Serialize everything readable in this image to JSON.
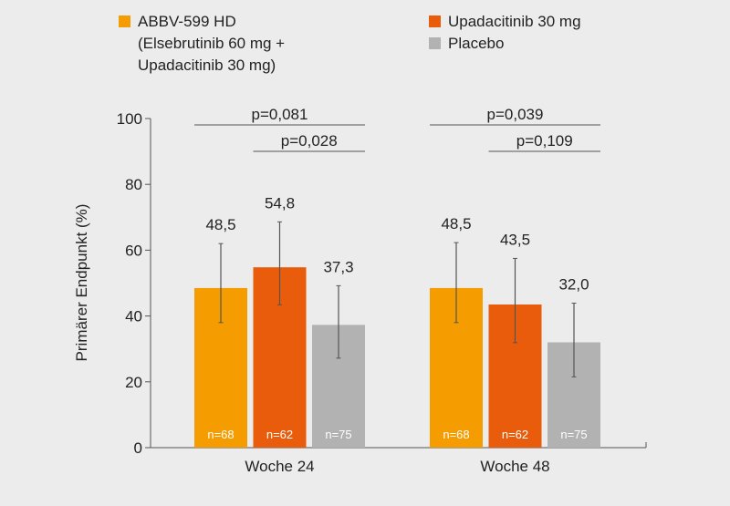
{
  "chart_data": {
    "type": "bar",
    "categories": [
      "Woche 24",
      "Woche 48"
    ],
    "ylabel": "Primärer Endpunkt (%)",
    "xlabel": "",
    "ylim": [
      0,
      100
    ],
    "yticks": [
      0,
      20,
      40,
      60,
      80,
      100
    ],
    "grid": false,
    "legend_position": "top",
    "series": [
      {
        "name": "ABBV-599 HD\n(Elsebrutinib 60 mg +\nUpadacitinib 30 mg)",
        "legend_lines": [
          "ABBV-599 HD",
          "(Elsebrutinib 60 mg +",
          "Upadacitinib 30 mg)"
        ],
        "color": "#f59c00",
        "values": [
          48.5,
          48.5
        ],
        "labels": [
          "48,5",
          "48,5"
        ],
        "n": [
          "n=68",
          "n=68"
        ],
        "err_low": [
          38.0,
          38.0
        ],
        "err_high": [
          62.0,
          62.3
        ]
      },
      {
        "name": "Upadacitinib 30 mg",
        "legend_lines": [
          "Upadacitinib 30 mg"
        ],
        "color": "#e95c0c",
        "values": [
          54.8,
          43.5
        ],
        "labels": [
          "54,8",
          "43,5"
        ],
        "n": [
          "n=62",
          "n=62"
        ],
        "err_low": [
          43.4,
          31.9
        ],
        "err_high": [
          68.6,
          57.5
        ]
      },
      {
        "name": "Placebo",
        "legend_lines": [
          "Placebo"
        ],
        "color": "#b2b2b2",
        "values": [
          37.3,
          32.0
        ],
        "labels": [
          "37,3",
          "32,0"
        ],
        "n": [
          "n=75",
          "n=75"
        ],
        "err_low": [
          27.2,
          21.5
        ],
        "err_high": [
          49.2,
          43.9
        ]
      }
    ],
    "comparisons": [
      {
        "category": 0,
        "from": 0,
        "to": 2,
        "label": "p=0,081",
        "level": 0
      },
      {
        "category": 0,
        "from": 1,
        "to": 2,
        "label": "p=0,028",
        "level": 1
      },
      {
        "category": 1,
        "from": 0,
        "to": 2,
        "label": "p=0,039",
        "level": 0
      },
      {
        "category": 1,
        "from": 1,
        "to": 2,
        "label": "p=0,109",
        "level": 1
      }
    ]
  }
}
